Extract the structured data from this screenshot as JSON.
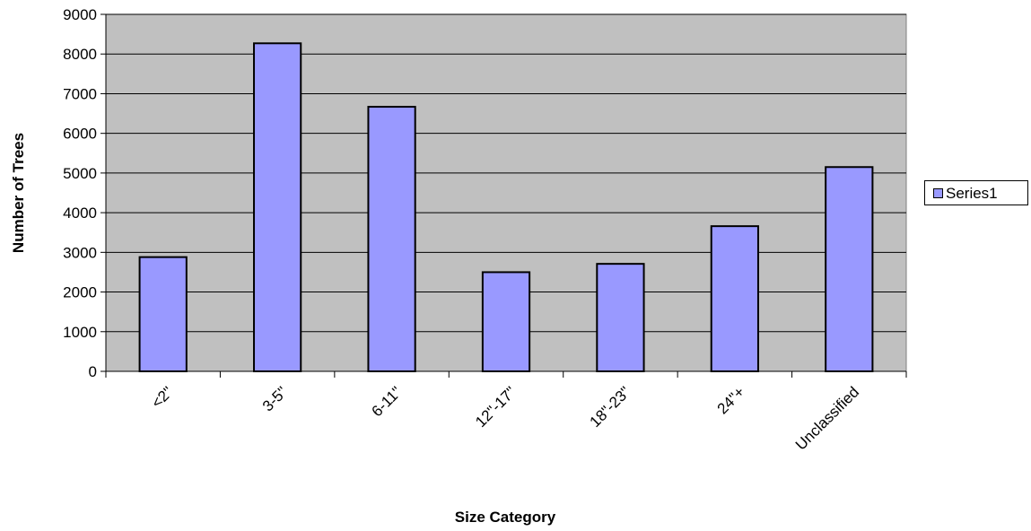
{
  "chart_data": {
    "type": "bar",
    "title": "",
    "xlabel": "Size Category",
    "ylabel": "Number of Trees",
    "categories": [
      "<2\"",
      "3-5\"",
      "6-11\"",
      "12\"-17\"",
      "18\"-23\"",
      "24\"+",
      "Unclassified"
    ],
    "series": [
      {
        "name": "Series1",
        "values": [
          2880,
          8270,
          6670,
          2500,
          2710,
          3660,
          5150
        ]
      }
    ],
    "ylim": [
      0,
      9000
    ],
    "yticks": [
      0,
      1000,
      2000,
      3000,
      4000,
      5000,
      6000,
      7000,
      8000,
      9000
    ],
    "grid": true,
    "legend_position": "right",
    "colors": {
      "plot_background": "#c0c0c0",
      "bar_fill": "#9999ff",
      "bar_stroke": "#000000",
      "grid": "#000000"
    }
  }
}
